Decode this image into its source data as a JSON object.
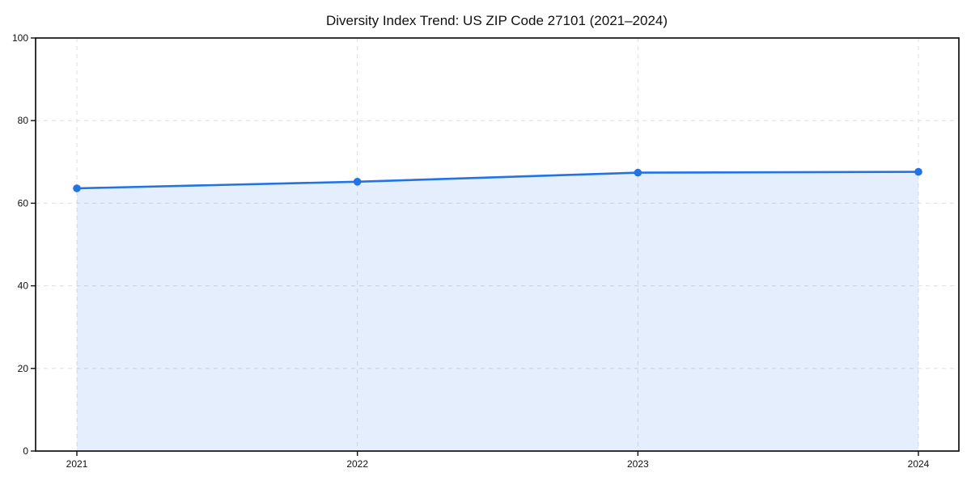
{
  "chart_data": {
    "type": "area",
    "title": "Diversity Index Trend: US ZIP Code 27101 (2021–2024)",
    "categories": [
      "2021",
      "2022",
      "2023",
      "2024"
    ],
    "series": [
      {
        "name": "Diversity Index",
        "values": [
          63.6,
          65.2,
          67.4,
          67.6
        ]
      }
    ],
    "xlabel": "",
    "ylabel": "",
    "ylim": [
      0,
      100
    ],
    "yticks": [
      0,
      20,
      40,
      60,
      80,
      100
    ],
    "grid": "both-dashed",
    "legend": "none",
    "marker": "circle",
    "colors": {
      "line": "#2273e6",
      "fill": "#2273e6",
      "fill_opacity": 0.12,
      "grid": "#dedede",
      "spine": "#111111",
      "text": "#111111",
      "background": "#ffffff"
    }
  }
}
